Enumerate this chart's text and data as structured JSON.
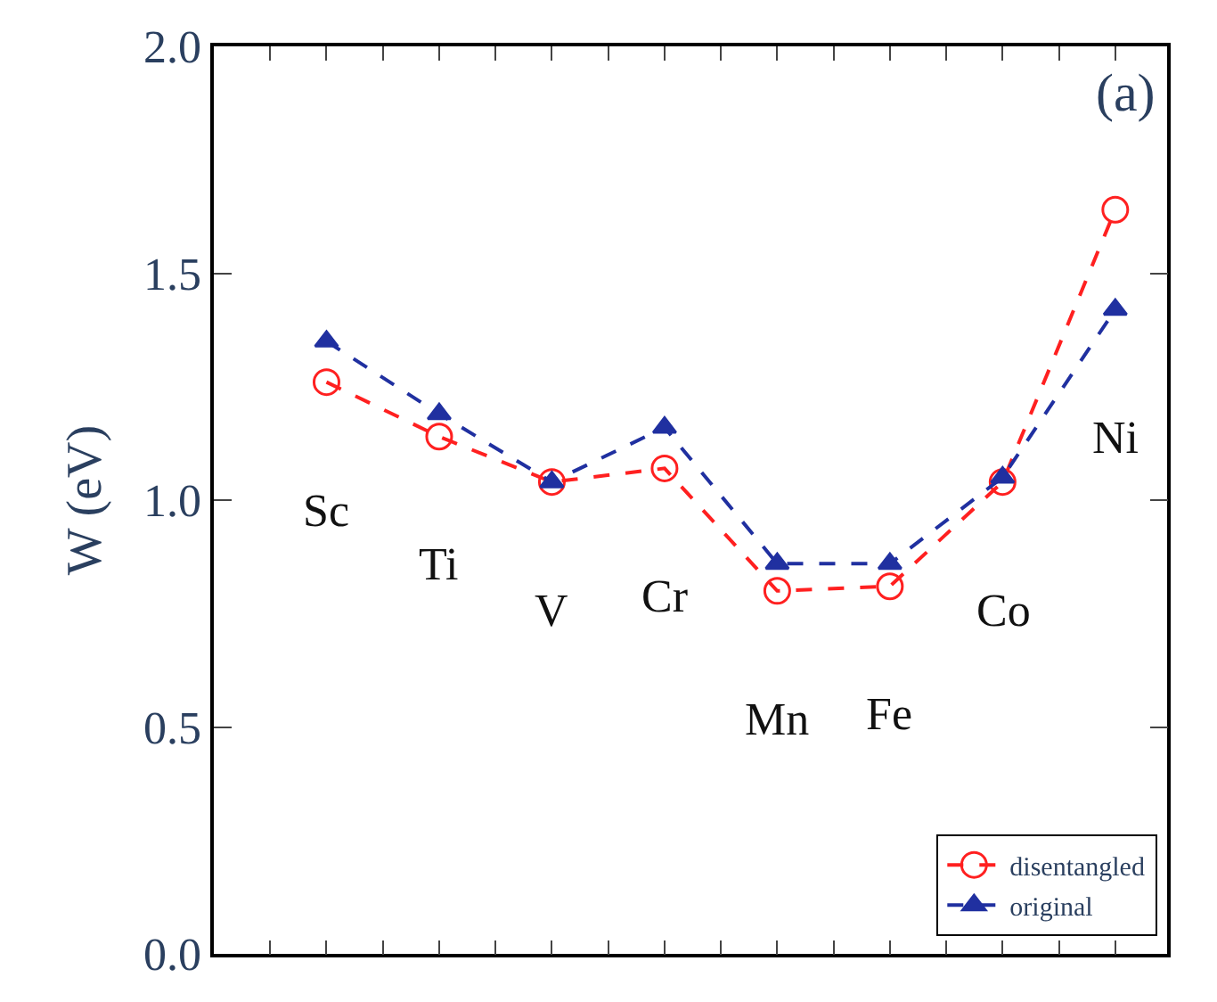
{
  "chart_data": {
    "type": "line",
    "categories": [
      "Sc",
      "Ti",
      "V",
      "Cr",
      "Mn",
      "Fe",
      "Co",
      "Ni"
    ],
    "series": [
      {
        "name": "disentangled",
        "color": "#ff2020",
        "marker": "circle",
        "line_style": "dashed",
        "values": [
          1.26,
          1.14,
          1.04,
          1.07,
          0.8,
          0.81,
          1.04,
          1.64
        ]
      },
      {
        "name": "original",
        "color": "#2030a0",
        "marker": "triangle",
        "line_style": "dashed",
        "values": [
          1.35,
          1.19,
          1.04,
          1.16,
          0.86,
          0.86,
          1.05,
          1.42
        ]
      }
    ],
    "ylabel": "W (eV)",
    "ylim": [
      0,
      2.0
    ],
    "yticks": [
      {
        "value": 0,
        "label": "0.0"
      },
      {
        "value": 0.5,
        "label": "0.5"
      },
      {
        "value": 1.0,
        "label": "1.0"
      },
      {
        "value": 1.5,
        "label": "1.5"
      },
      {
        "value": 2.0,
        "label": "2.0"
      }
    ],
    "legend": "bottom right",
    "annotations": [
      "(a)"
    ]
  }
}
